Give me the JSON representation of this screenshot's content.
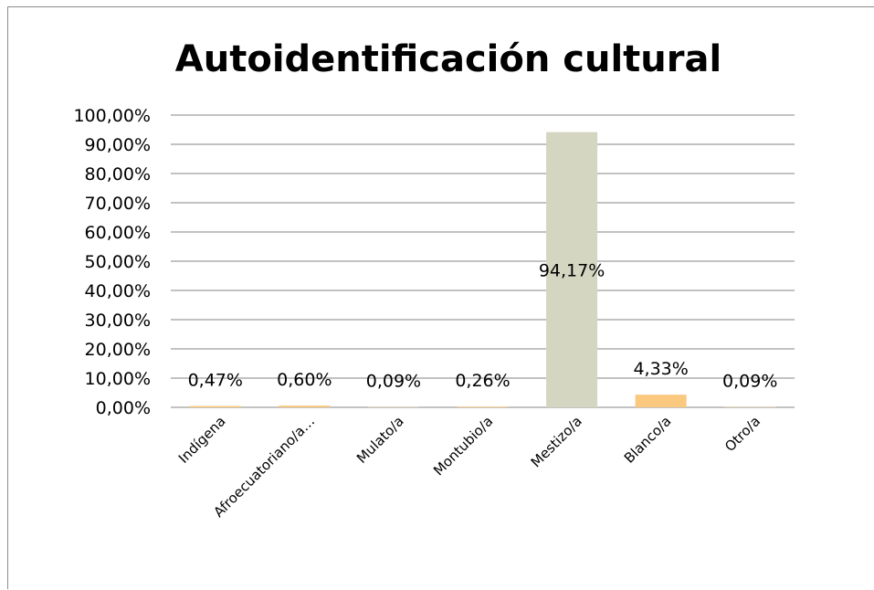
{
  "chart_data": {
    "type": "bar",
    "title": "Autoidentificación cultural",
    "xlabel": "",
    "ylabel": "",
    "ylim": [
      0,
      100
    ],
    "grid": true,
    "legend": "none",
    "y_ticks": [
      "0,00%",
      "10,00%",
      "20,00%",
      "30,00%",
      "40,00%",
      "50,00%",
      "60,00%",
      "70,00%",
      "80,00%",
      "90,00%",
      "100,00%"
    ],
    "categories": [
      "Indígena",
      "Afroecuatoriano/a…",
      "Mulato/a",
      "Montubio/a",
      "Mestizo/a",
      "Blanco/a",
      "Otro/a"
    ],
    "values": [
      0.47,
      0.6,
      0.09,
      0.26,
      94.17,
      4.33,
      0.09
    ],
    "data_labels": [
      "0,47%",
      "0,60%",
      "0,09%",
      "0,26%",
      "94,17%",
      "4,33%",
      "0,09%"
    ],
    "colors": [
      "#fac97f",
      "#fac97f",
      "#fac97f",
      "#fac97f",
      "#d5d6c1",
      "#fac97f",
      "#fac97f"
    ]
  }
}
